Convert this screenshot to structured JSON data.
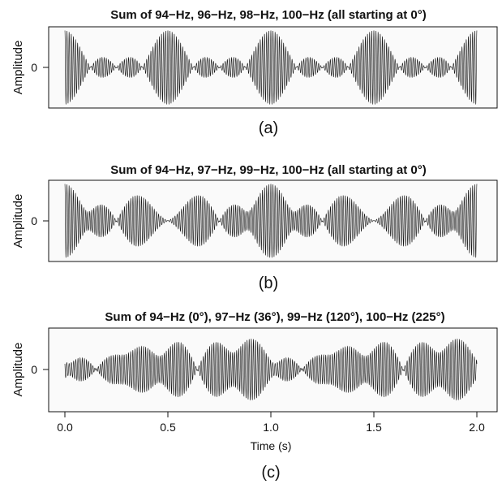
{
  "chart_data": [
    {
      "type": "line",
      "title": "Sum of 94−Hz, 96−Hz, 98−Hz, 100−Hz (all starting at 0°)",
      "ylabel": "Amplitude",
      "xlabel": "",
      "caption": "(a)",
      "y_tick_labels": [
        "0"
      ],
      "x_tick_labels": [],
      "xlim": [
        0,
        2
      ],
      "ylim": [
        -4.4,
        4.4
      ],
      "components": [
        {
          "frequency_hz": 94,
          "phase_deg": 0
        },
        {
          "frequency_hz": 96,
          "phase_deg": 0
        },
        {
          "frequency_hz": 98,
          "phase_deg": 0
        },
        {
          "frequency_hz": 100,
          "phase_deg": 0
        }
      ],
      "grid": false
    },
    {
      "type": "line",
      "title": "Sum of 94−Hz, 97−Hz, 99−Hz, 100−Hz (all starting at 0°)",
      "ylabel": "Amplitude",
      "xlabel": "",
      "caption": "(b)",
      "y_tick_labels": [
        "0"
      ],
      "x_tick_labels": [],
      "xlim": [
        0,
        2
      ],
      "ylim": [
        -4.4,
        4.4
      ],
      "components": [
        {
          "frequency_hz": 94,
          "phase_deg": 0
        },
        {
          "frequency_hz": 97,
          "phase_deg": 0
        },
        {
          "frequency_hz": 99,
          "phase_deg": 0
        },
        {
          "frequency_hz": 100,
          "phase_deg": 0
        }
      ],
      "grid": false
    },
    {
      "type": "line",
      "title": "Sum of 94−Hz (0°), 97−Hz (36°), 99−Hz (120°), 100−Hz (225°)",
      "ylabel": "Amplitude",
      "xlabel": "Time (s)",
      "caption": "(c)",
      "y_tick_labels": [
        "0"
      ],
      "x_ticks": [
        0.0,
        0.5,
        1.0,
        1.5,
        2.0
      ],
      "x_tick_labels": [
        "0.0",
        "0.5",
        "1.0",
        "1.5",
        "2.0"
      ],
      "xlim": [
        0,
        2
      ],
      "ylim": [
        -4.4,
        4.4
      ],
      "components": [
        {
          "frequency_hz": 94,
          "phase_deg": 0
        },
        {
          "frequency_hz": 97,
          "phase_deg": 36
        },
        {
          "frequency_hz": 99,
          "phase_deg": 120
        },
        {
          "frequency_hz": 100,
          "phase_deg": 225
        }
      ],
      "grid": false
    }
  ]
}
